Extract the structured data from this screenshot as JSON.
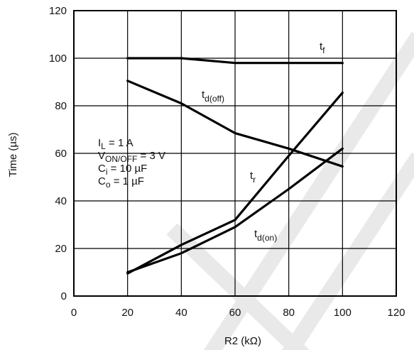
{
  "chart_data": {
    "type": "line",
    "xlabel": "R2 (kΩ)",
    "ylabel": "Time (µs)",
    "xlim": [
      0,
      120
    ],
    "ylim": [
      0,
      120
    ],
    "x_ticks": [
      "0",
      "20",
      "40",
      "60",
      "80",
      "100",
      "120"
    ],
    "y_ticks": [
      "0",
      "20",
      "40",
      "60",
      "80",
      "100",
      "120"
    ],
    "grid": true,
    "series": [
      {
        "name": "t",
        "sub": "f",
        "x": [
          20,
          40,
          60,
          80,
          100
        ],
        "values": [
          100,
          100,
          98,
          98,
          98
        ]
      },
      {
        "name": "t",
        "sub": "d(off)",
        "x": [
          20,
          40,
          60,
          80,
          100
        ],
        "values": [
          90.5,
          81,
          68.5,
          62,
          54.5
        ]
      },
      {
        "name": "t",
        "sub": "r",
        "x": [
          20,
          40,
          60,
          80,
          100
        ],
        "values": [
          9.5,
          21.5,
          32,
          59,
          85.5
        ]
      },
      {
        "name": "t",
        "sub": "d(on)",
        "x": [
          20,
          40,
          60,
          80,
          100
        ],
        "values": [
          10,
          18,
          29,
          45,
          62
        ]
      }
    ],
    "conditions": [
      {
        "main": "I",
        "sub": "L",
        "rest": " = 1 A"
      },
      {
        "main": "V",
        "sub": "ON/OFF",
        "rest": " = 3 V"
      },
      {
        "main": "C",
        "sub": "i",
        "rest": " = 10 µF"
      },
      {
        "main": "C",
        "sub": "o",
        "rest": " = 1 µF"
      }
    ]
  }
}
